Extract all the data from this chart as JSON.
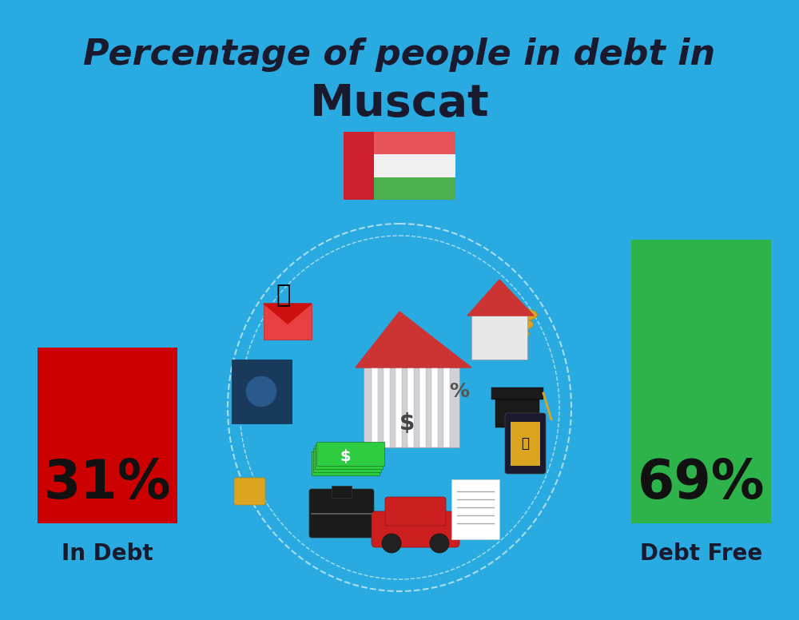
{
  "title_line1": "Percentage of people in debt in",
  "title_line2": "Muscat",
  "background_color": "#29ABE2",
  "bar1_value": 31,
  "bar1_label": "31%",
  "bar1_color": "#CC0000",
  "bar1_caption": "In Debt",
  "bar2_value": 69,
  "bar2_label": "69%",
  "bar2_color": "#2DB34A",
  "bar2_caption": "Debt Free",
  "title_fontsize": 32,
  "subtitle_fontsize": 40,
  "bar_label_fontsize": 48,
  "caption_fontsize": 20,
  "title_color": "#1a1a2e",
  "caption_color": "#1a1a2e",
  "bar_label_color": "#111111",
  "flag_white": "#F0F0F0",
  "flag_red": "#E8535A",
  "flag_green": "#4CAF50",
  "flag_left_red": "#CC2030",
  "center_circle_color": "#29ABE2",
  "dashed_circle_color": "#AADDEE"
}
